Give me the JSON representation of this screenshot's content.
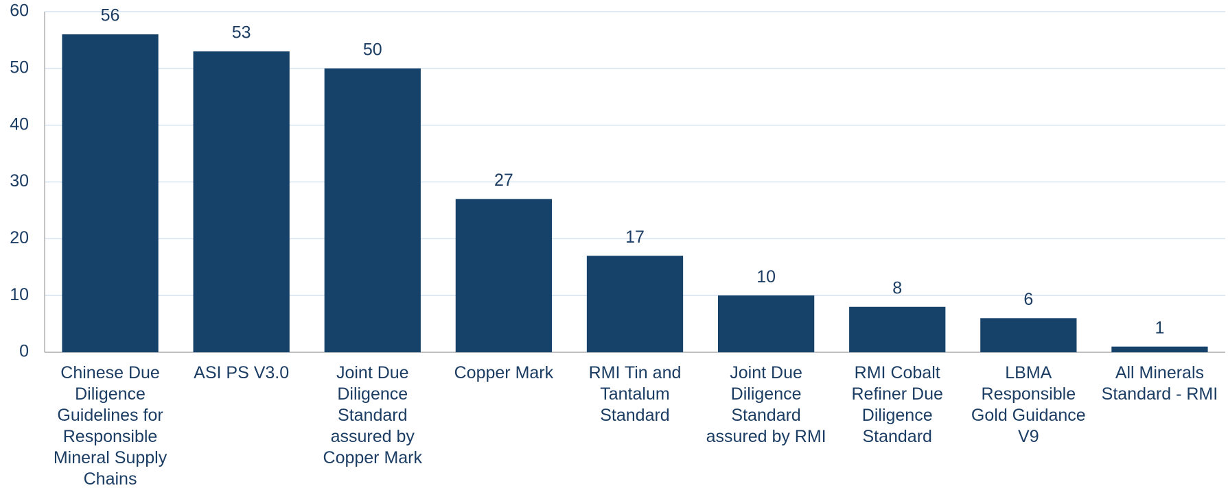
{
  "chart_data": {
    "type": "bar",
    "categories": [
      "Chinese Due Diligence Guidelines for Responsible Mineral Supply Chains",
      "ASI PS V3.0",
      "Joint Due Diligence Standard assured by Copper Mark",
      "Copper Mark",
      "RMI Tin and Tantalum Standard",
      "Joint Due Diligence Standard assured by RMI",
      "RMI Cobalt Refiner Due Diligence Standard",
      "LBMA Responsible Gold Guidance V9",
      "All Minerals Standard - RMI"
    ],
    "values": [
      56,
      53,
      50,
      27,
      17,
      10,
      8,
      6,
      1
    ],
    "color": "#16426a",
    "ylim": [
      0,
      60
    ],
    "yticks": [
      0,
      10,
      20,
      30,
      40,
      50,
      60
    ],
    "grid": true
  }
}
